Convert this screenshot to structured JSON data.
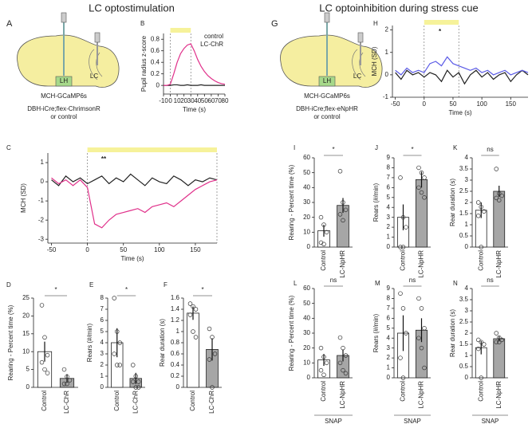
{
  "headings": [
    "LC optostimulation",
    "LC optoinhibition during stress cue"
  ],
  "diagrams": [
    {
      "panel": "A",
      "region": "LH",
      "nucleus": "LC",
      "line1": "MCH-GCaMP6s",
      "line2": "DBH-iCre;flex-ChrimsonR",
      "line3": "or control",
      "color": "#d6257a"
    },
    {
      "panel": "G",
      "region": "LH",
      "nucleus": "LC",
      "line1": "MCH-GCaMP6s",
      "line2": "DBH-iCre;flex-eNpHR",
      "line3": "or control",
      "color": "#5a5ae6"
    }
  ],
  "chart_data": [
    {
      "type": "line",
      "panel": "B",
      "xlabel": "Time (s)",
      "ylabel": "Pupil radius z-score",
      "x": [
        -10,
        -5,
        0,
        5,
        10,
        15,
        20,
        25,
        30,
        35,
        40,
        45,
        50,
        55,
        60,
        65,
        70,
        75,
        80
      ],
      "series": [
        {
          "name": "control",
          "color": "#222222",
          "values": [
            0,
            0,
            0,
            0.01,
            0.01,
            0,
            0,
            0.01,
            0,
            0,
            0,
            0.01,
            0,
            0,
            0,
            0,
            0,
            0,
            0
          ]
        },
        {
          "name": "LC-ChR",
          "color": "#e0308a",
          "values": [
            0,
            0,
            0.02,
            0.2,
            0.4,
            0.55,
            0.64,
            0.7,
            0.72,
            0.6,
            0.45,
            0.33,
            0.24,
            0.17,
            0.12,
            0.08,
            0.05,
            0.03,
            0.02
          ]
        }
      ],
      "stim": [
        0,
        30
      ],
      "stim_color": "#f6f29a",
      "xlim": [
        -10,
        80
      ],
      "xticks": [
        -10,
        0,
        10,
        20,
        30,
        40,
        50,
        60,
        70,
        80
      ],
      "ylim": [
        -0.15,
        0.9
      ],
      "yticks": [
        0,
        0.2,
        0.4,
        0.6,
        0.8
      ]
    },
    {
      "type": "line",
      "panel": "C",
      "xlabel": "Time (s)",
      "ylabel": "MCH  (SD)",
      "annotation": "**",
      "annotation_color": "#e0308a",
      "x": [
        -50,
        -40,
        -30,
        -20,
        -10,
        0,
        10,
        20,
        30,
        40,
        50,
        60,
        70,
        80,
        90,
        100,
        110,
        120,
        130,
        140,
        150,
        160,
        170,
        180
      ],
      "series": [
        {
          "color": "#222222",
          "values": [
            0.1,
            -0.2,
            0.3,
            0,
            0.2,
            -0.1,
            0.1,
            0.3,
            -0.1,
            0.2,
            0,
            0.4,
            0.1,
            -0.2,
            0.2,
            0,
            -0.1,
            0.3,
            0.1,
            -0.2,
            0.1,
            0,
            0.2,
            0.1
          ]
        },
        {
          "color": "#e0308a",
          "values": [
            0.2,
            -0.1,
            0.1,
            -0.2,
            0.1,
            -0.3,
            -2.2,
            -2.4,
            -2,
            -1.7,
            -1.6,
            -1.5,
            -1.4,
            -1.6,
            -1.3,
            -1.2,
            -1.1,
            -1.3,
            -1,
            -0.7,
            -0.4,
            -0.2,
            0,
            0.1
          ]
        }
      ],
      "stim": [
        0,
        180
      ],
      "stim_color": "#f6f29a",
      "xlim": [
        -55,
        180
      ],
      "xticks": [
        -50,
        0,
        50,
        100,
        150
      ],
      "ylim": [
        -3.2,
        1.5
      ],
      "yticks": [
        -3,
        -2,
        -1,
        0,
        1
      ]
    },
    {
      "type": "bar",
      "panel": "D",
      "ylabel": "Rearing - Percent time (%)",
      "annotation": "*",
      "categories": [
        "Control",
        "LC-ChR"
      ],
      "values": [
        10,
        2.5
      ],
      "errors": [
        2.8,
        1.2
      ],
      "points": [
        [
          23,
          14,
          9,
          7,
          5,
          4
        ],
        [
          5,
          3,
          2,
          1,
          1
        ]
      ],
      "colors": [
        "#ffffff",
        "#a6a6a6"
      ],
      "ylim": [
        0,
        25
      ],
      "yticks": [
        0,
        5,
        10,
        15,
        20,
        25
      ]
    },
    {
      "type": "bar",
      "panel": "E",
      "ylabel": "Rears (#/min)",
      "annotation": "*",
      "categories": [
        "Control",
        "LC-ChR"
      ],
      "values": [
        4,
        0.8
      ],
      "errors": [
        1.3,
        0.5
      ],
      "points": [
        [
          8,
          5,
          4,
          3,
          2,
          2
        ],
        [
          2,
          1,
          0.5,
          0.5,
          0,
          0
        ]
      ],
      "colors": [
        "#ffffff",
        "#a6a6a6"
      ],
      "ylim": [
        0,
        8
      ],
      "yticks": [
        0,
        1,
        2,
        3,
        4,
        5,
        6,
        7,
        8
      ]
    },
    {
      "type": "bar",
      "panel": "F",
      "ylabel": "Rear duration (s)",
      "annotation": "*",
      "categories": [
        "Control",
        "LC-ChR"
      ],
      "values": [
        1.33,
        0.68
      ],
      "errors": [
        0.12,
        0.2
      ],
      "points": [
        [
          1.5,
          1.45,
          1.4,
          1.3,
          1.0,
          0.9
        ],
        [
          1.05,
          0.9,
          0.6,
          0.5,
          0
        ]
      ],
      "colors": [
        "#ffffff",
        "#a6a6a6"
      ],
      "ylim": [
        0,
        1.6
      ],
      "yticks": [
        0,
        0.2,
        0.4,
        0.6,
        0.8,
        1,
        1.2,
        1.4,
        1.6
      ]
    },
    {
      "type": "line",
      "panel": "H",
      "xlabel": "Time (s)",
      "ylabel": "MCH (SD)",
      "annotation": "*",
      "annotation_color": "#5a5ae6",
      "x": [
        -50,
        -40,
        -30,
        -20,
        -10,
        0,
        10,
        20,
        30,
        40,
        50,
        60,
        70,
        80,
        90,
        100,
        110,
        120,
        130,
        140,
        150,
        160,
        170,
        180
      ],
      "series": [
        {
          "color": "#222222",
          "values": [
            0.1,
            -0.2,
            0.2,
            0,
            0.1,
            -0.1,
            0.1,
            0,
            -0.3,
            0.2,
            -0.1,
            0.1,
            -0.4,
            0,
            0.2,
            -0.1,
            0.1,
            -0.2,
            0,
            0.1,
            -0.3,
            0,
            0.2,
            0
          ]
        },
        {
          "color": "#5a5ae6",
          "values": [
            0.2,
            0,
            0.3,
            0.1,
            0.2,
            0.1,
            0.5,
            0.6,
            0.4,
            0.8,
            0.5,
            0.4,
            0.3,
            0.2,
            0.3,
            0.1,
            0.2,
            0,
            0.1,
            0.2,
            0,
            0.1,
            0.2,
            0.1
          ]
        }
      ],
      "stim": [
        0,
        60
      ],
      "stim_color": "#f6f29a",
      "xlim": [
        -55,
        180
      ],
      "xticks": [
        -50,
        0,
        50,
        100,
        150
      ],
      "ylim": [
        -1,
        2.2
      ],
      "yticks": [
        -1,
        0,
        1,
        2
      ]
    },
    {
      "type": "bar",
      "panel": "I",
      "ylabel": "Rearing - Percent time (%)",
      "annotation": "*",
      "categories": [
        "Control",
        "LC-NpHR"
      ],
      "values": [
        11,
        28
      ],
      "errors": [
        4,
        5
      ],
      "points": [
        [
          20,
          15,
          10,
          3,
          2
        ],
        [
          51,
          30,
          25,
          22,
          18
        ]
      ],
      "colors": [
        "#ffffff",
        "#a6a6a6"
      ],
      "ylim": [
        0,
        60
      ],
      "yticks": [
        0,
        10,
        20,
        30,
        40,
        50,
        60
      ]
    },
    {
      "type": "bar",
      "panel": "J",
      "ylabel": "Rears (#/min)",
      "annotation": "*",
      "categories": [
        "Control",
        "LC-NpHR"
      ],
      "values": [
        3,
        6.8
      ],
      "errors": [
        1.3,
        0.8
      ],
      "points": [
        [
          7,
          3,
          2,
          0,
          0
        ],
        [
          8,
          7.5,
          7,
          6,
          5.5,
          5
        ]
      ],
      "colors": [
        "#ffffff",
        "#a6a6a6"
      ],
      "ylim": [
        0,
        9
      ],
      "yticks": [
        0,
        1,
        2,
        3,
        4,
        5,
        6,
        7,
        8,
        9
      ]
    },
    {
      "type": "bar",
      "panel": "K",
      "ylabel": "Rear duration (s)",
      "annotation": "ns",
      "categories": [
        "Control",
        "LC-NpHR"
      ],
      "values": [
        1.65,
        2.5
      ],
      "errors": [
        0.35,
        0.25
      ],
      "points": [
        [
          2,
          1.8,
          1.6,
          1.4,
          0
        ],
        [
          3.5,
          2.4,
          2.3,
          2.2,
          2.1
        ]
      ],
      "colors": [
        "#ffffff",
        "#a6a6a6"
      ],
      "ylim": [
        0,
        4
      ],
      "yticks": [
        0,
        0.5,
        1,
        1.5,
        2,
        2.5,
        3,
        3.5,
        4
      ]
    },
    {
      "type": "bar",
      "panel": "L",
      "ylabel": "Rearing - Percent time (%)",
      "annotation": "ns",
      "footer": "SNAP",
      "categories": [
        "Control",
        "LC-NpHR"
      ],
      "values": [
        12,
        15
      ],
      "errors": [
        4,
        4
      ],
      "points": [
        [
          20,
          14,
          10,
          5,
          2
        ],
        [
          27,
          20,
          15,
          10,
          5,
          3
        ]
      ],
      "colors": [
        "#ffffff",
        "#a6a6a6"
      ],
      "ylim": [
        0,
        60
      ],
      "yticks": [
        0,
        10,
        20,
        30,
        40,
        50,
        60
      ]
    },
    {
      "type": "bar",
      "panel": "M",
      "ylabel": "Rears (#/min)",
      "annotation": "ns",
      "footer": "SNAP",
      "categories": [
        "Control",
        "LC-NpHR"
      ],
      "values": [
        4.5,
        4.8
      ],
      "errors": [
        1.8,
        1.2
      ],
      "points": [
        [
          8.5,
          7,
          4.5,
          2,
          0
        ],
        [
          8,
          7,
          5,
          4,
          3,
          1
        ]
      ],
      "colors": [
        "#ffffff",
        "#a6a6a6"
      ],
      "ylim": [
        0,
        9
      ],
      "yticks": [
        0,
        1,
        2,
        3,
        4,
        5,
        6,
        7,
        8,
        9
      ]
    },
    {
      "type": "bar",
      "panel": "N",
      "ylabel": "Rear duration (s)",
      "annotation": "ns",
      "footer": "SNAP",
      "categories": [
        "Control",
        "LC-NpHR"
      ],
      "values": [
        1.35,
        1.75
      ],
      "errors": [
        0.3,
        0.12
      ],
      "points": [
        [
          1.7,
          1.6,
          1.5,
          1.3,
          0
        ],
        [
          2,
          1.8,
          1.7,
          1.6,
          1.6
        ]
      ],
      "colors": [
        "#ffffff",
        "#a6a6a6"
      ],
      "ylim": [
        0,
        4
      ],
      "yticks": [
        0,
        0.5,
        1,
        1.5,
        2,
        2.5,
        3,
        3.5,
        4
      ]
    }
  ]
}
